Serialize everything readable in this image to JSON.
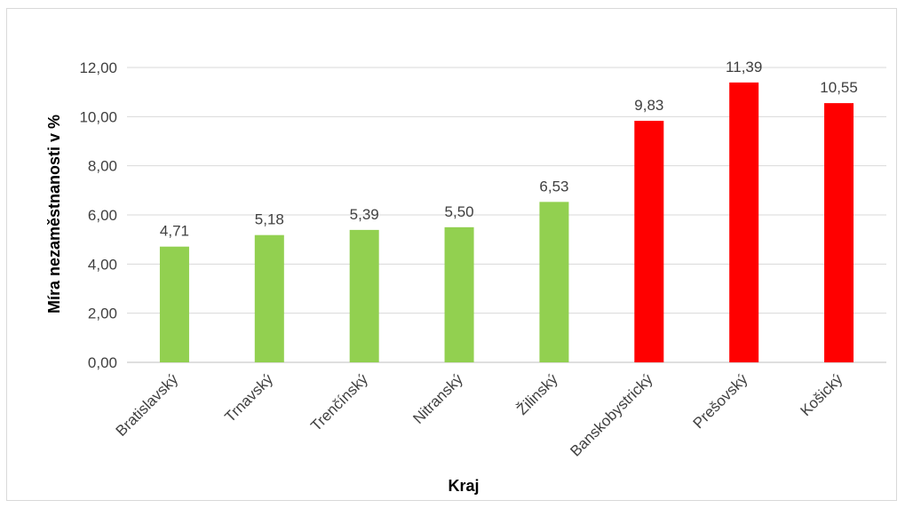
{
  "chart_data": {
    "type": "bar",
    "title": "",
    "xlabel": "Kraj",
    "ylabel": "Míra nezaměstnanosti v %",
    "ylim": [
      0,
      12
    ],
    "yticks": [
      "0,00",
      "2,00",
      "4,00",
      "6,00",
      "8,00",
      "10,00",
      "12,00"
    ],
    "grid": true,
    "categories": [
      "Bratislavský",
      "Trnavský",
      "Trenčínský",
      "Nitranský",
      "Žilinský",
      "Banskobystrický",
      "Prešovský",
      "Košický"
    ],
    "values": [
      4.71,
      5.18,
      5.39,
      5.5,
      6.53,
      9.83,
      11.39,
      10.55
    ],
    "data_labels": [
      "4,71",
      "5,18",
      "5,39",
      "5,50",
      "6,53",
      "9,83",
      "11,39",
      "10,55"
    ],
    "bar_colors": [
      "#92d050",
      "#92d050",
      "#92d050",
      "#92d050",
      "#92d050",
      "#ff0000",
      "#ff0000",
      "#ff0000"
    ]
  }
}
